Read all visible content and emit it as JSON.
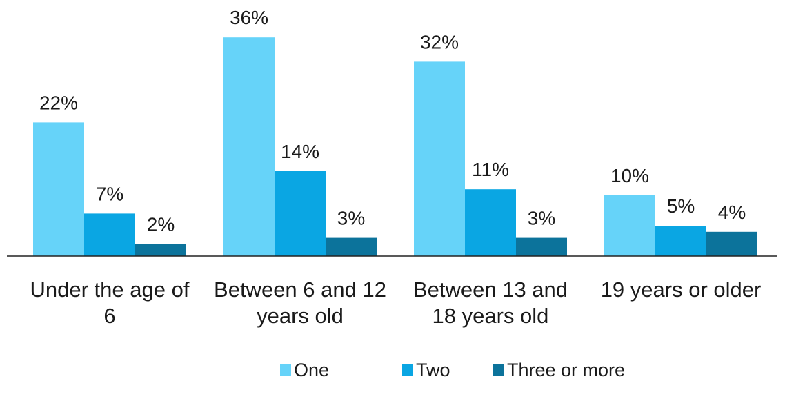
{
  "chart_data": {
    "type": "bar",
    "title": "",
    "xlabel": "",
    "ylabel": "",
    "ylim": [
      0,
      36
    ],
    "grid": false,
    "legend_position": "bottom",
    "categories": [
      [
        "Under the age of",
        "6"
      ],
      [
        "Between 6 and 12",
        "years old"
      ],
      [
        "Between 13 and",
        "18 years old"
      ],
      [
        "19 years or older"
      ]
    ],
    "series": [
      {
        "name": "One",
        "color": "#66d3f9",
        "values": [
          22,
          36,
          32,
          10
        ],
        "labels": [
          "22%",
          "36%",
          "32%",
          "10%"
        ]
      },
      {
        "name": "Two",
        "color": "#0aa6e3",
        "values": [
          7,
          14,
          11,
          5
        ],
        "labels": [
          "7%",
          "14%",
          "11%",
          "5%"
        ]
      },
      {
        "name": "Three or more",
        "color": "#0c739b",
        "values": [
          2,
          3,
          3,
          4
        ],
        "labels": [
          "2%",
          "3%",
          "3%",
          "4%"
        ]
      }
    ]
  }
}
